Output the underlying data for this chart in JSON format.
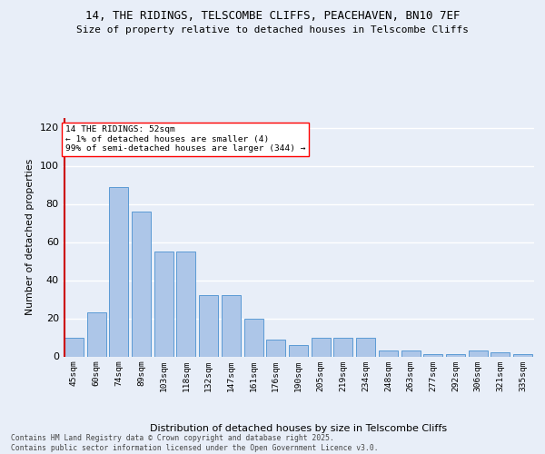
{
  "title1": "14, THE RIDINGS, TELSCOMBE CLIFFS, PEACEHAVEN, BN10 7EF",
  "title2": "Size of property relative to detached houses in Telscombe Cliffs",
  "xlabel": "Distribution of detached houses by size in Telscombe Cliffs",
  "ylabel": "Number of detached properties",
  "categories": [
    "45sqm",
    "60sqm",
    "74sqm",
    "89sqm",
    "103sqm",
    "118sqm",
    "132sqm",
    "147sqm",
    "161sqm",
    "176sqm",
    "190sqm",
    "205sqm",
    "219sqm",
    "234sqm",
    "248sqm",
    "263sqm",
    "277sqm",
    "292sqm",
    "306sqm",
    "321sqm",
    "335sqm"
  ],
  "values": [
    10,
    23,
    89,
    76,
    55,
    55,
    32,
    32,
    20,
    9,
    6,
    10,
    10,
    10,
    3,
    3,
    1,
    1,
    3,
    2,
    1
  ],
  "bar_color": "#adc6e8",
  "bar_edge_color": "#5b9bd5",
  "annotation_line1": "14 THE RIDINGS: 52sqm",
  "annotation_line2": "← 1% of detached houses are smaller (4)",
  "annotation_line3": "99% of semi-detached houses are larger (344) →",
  "vline_color": "#cc0000",
  "background_color": "#e8eef8",
  "grid_color": "#ffffff",
  "footer_text": "Contains HM Land Registry data © Crown copyright and database right 2025.\nContains public sector information licensed under the Open Government Licence v3.0.",
  "ylim_max": 125,
  "yticks": [
    0,
    20,
    40,
    60,
    80,
    100,
    120
  ]
}
